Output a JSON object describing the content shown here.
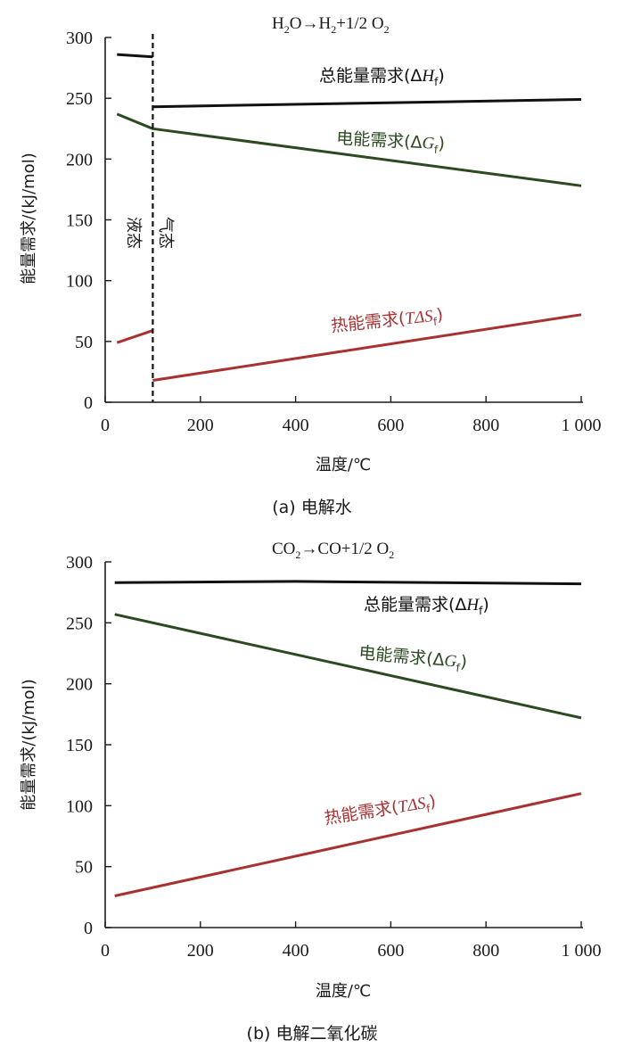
{
  "colors": {
    "total": "#111111",
    "electric": "#2b4a22",
    "thermal": "#a83232",
    "axis": "#1a1a1a"
  },
  "chart_data": [
    {
      "type": "line",
      "caption": "(a) 电解水",
      "reaction": {
        "a": "H",
        "b": "2",
        "c": "O→H",
        "d": "2",
        "e": "+1/2 O",
        "f": "2"
      },
      "xlabel": "温度/℃",
      "ylabel": "能量需求/(kJ/mol)",
      "xlim": [
        0,
        1000
      ],
      "ylim": [
        0,
        300
      ],
      "x_ticks": [
        0,
        200,
        400,
        600,
        800,
        1000
      ],
      "x_tick_labels": [
        "0",
        "200",
        "400",
        "600",
        "800",
        "1 000"
      ],
      "y_ticks": [
        0,
        50,
        100,
        150,
        200,
        250,
        300
      ],
      "y_tick_labels": [
        "0",
        "50",
        "100",
        "150",
        "200",
        "250",
        "300"
      ],
      "phase_boundary": 100,
      "phase_labels": {
        "left": "液态",
        "right": "气态"
      },
      "series": [
        {
          "key": "total",
          "name": "总能量需求(ΔHf)",
          "label_main": "总能量需求(Δ",
          "label_var": "H",
          "label_sub": "f",
          "label_end": ")",
          "segments": [
            [
              [
                25,
                286
              ],
              [
                100,
                284
              ]
            ],
            [
              [
                100,
                243
              ],
              [
                1000,
                249
              ]
            ]
          ]
        },
        {
          "key": "electric",
          "name": "电能需求(ΔGf)",
          "label_main": "电能需求(Δ",
          "label_var": "G",
          "label_sub": "f",
          "label_end": ")",
          "segments": [
            [
              [
                25,
                237
              ],
              [
                100,
                225
              ],
              [
                1000,
                178
              ]
            ]
          ]
        },
        {
          "key": "thermal",
          "name": "热能需求(TΔSf)",
          "label_main": "热能需求(",
          "label_var": "TΔS",
          "label_sub": "f",
          "label_end": ")",
          "segments": [
            [
              [
                25,
                49
              ],
              [
                100,
                59
              ]
            ],
            [
              [
                100,
                18
              ],
              [
                1000,
                72
              ]
            ]
          ]
        }
      ]
    },
    {
      "type": "line",
      "caption": "(b) 电解二氧化碳",
      "reaction": {
        "a": "CO",
        "b": "2",
        "c": "→CO+1/2 O",
        "d": "2",
        "e": "",
        "f": ""
      },
      "xlabel": "温度/℃",
      "ylabel": "能量需求/(kJ/mol)",
      "xlim": [
        0,
        1000
      ],
      "ylim": [
        0,
        300
      ],
      "x_ticks": [
        0,
        200,
        400,
        600,
        800,
        1000
      ],
      "x_tick_labels": [
        "0",
        "200",
        "400",
        "600",
        "800",
        "1 000"
      ],
      "y_ticks": [
        0,
        50,
        100,
        150,
        200,
        250,
        300
      ],
      "y_tick_labels": [
        "0",
        "50",
        "100",
        "150",
        "200",
        "250",
        "300"
      ],
      "series": [
        {
          "key": "total",
          "name": "总能量需求(ΔHf)",
          "label_main": "总能量需求(Δ",
          "label_var": "H",
          "label_sub": "f",
          "label_end": ")",
          "segments": [
            [
              [
                20,
                283
              ],
              [
                400,
                284
              ],
              [
                1000,
                282
              ]
            ]
          ]
        },
        {
          "key": "electric",
          "name": "电能需求(ΔGf)",
          "label_main": "电能需求(Δ",
          "label_var": "G",
          "label_sub": "f",
          "label_end": ")",
          "segments": [
            [
              [
                20,
                257
              ],
              [
                1000,
                172
              ]
            ]
          ]
        },
        {
          "key": "thermal",
          "name": "热能需求(TΔSf)",
          "label_main": "热能需求(",
          "label_var": "TΔS",
          "label_sub": "f",
          "label_end": ")",
          "segments": [
            [
              [
                20,
                26
              ],
              [
                1000,
                110
              ]
            ]
          ]
        }
      ]
    }
  ]
}
